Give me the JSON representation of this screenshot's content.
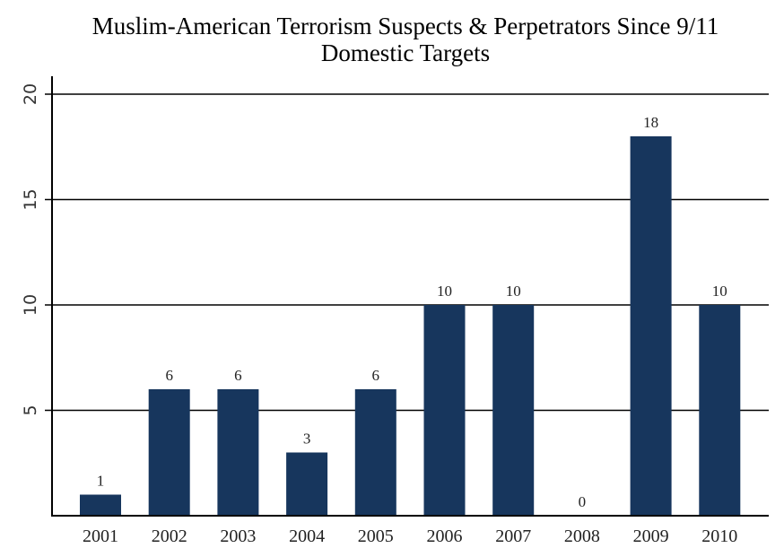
{
  "chart_data": {
    "type": "bar",
    "title": "Muslim-American Terrorism Suspects & Perpetrators Since 9/11",
    "subtitle": "Domestic Targets",
    "categories": [
      "2001",
      "2002",
      "2003",
      "2004",
      "2005",
      "2006",
      "2007",
      "2008",
      "2009",
      "2010"
    ],
    "values": [
      1,
      6,
      6,
      3,
      6,
      10,
      10,
      0,
      18,
      10
    ],
    "data_labels": [
      "1",
      "6",
      "6",
      "3",
      "6",
      "10",
      "10",
      "0",
      "18",
      "10"
    ],
    "xlabel": "",
    "ylabel": "",
    "ylim": [
      0,
      20
    ],
    "yticks": [
      5,
      10,
      15,
      20
    ],
    "ytick_labels": [
      "5",
      "10",
      "15",
      "20"
    ],
    "grid": true,
    "bar_color": "#17365d"
  }
}
